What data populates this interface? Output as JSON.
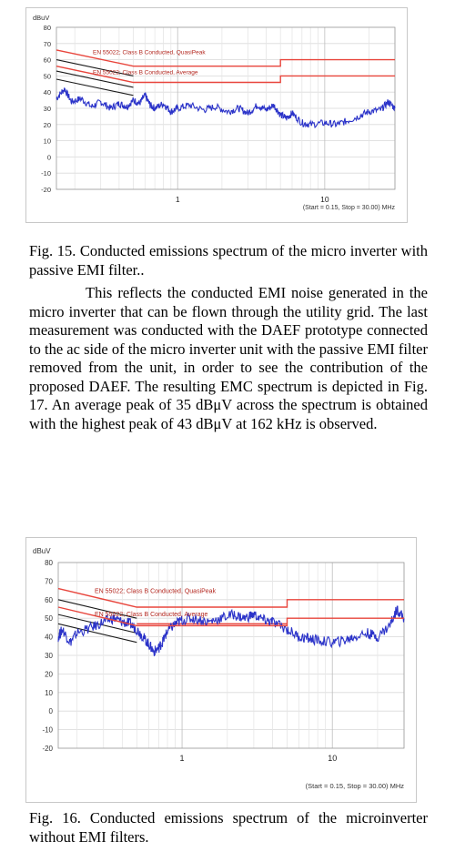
{
  "charts": [
    {
      "type": "line",
      "ylabel": "dBuV",
      "y_ticks": [
        "80",
        "70",
        "60",
        "50",
        "40",
        "30",
        "20",
        "10",
        "0",
        "-10",
        "-20"
      ],
      "ylim": [
        -20,
        80
      ],
      "x_scale": "log",
      "xlim": [
        0.15,
        30
      ],
      "x_ticks": [
        "1",
        "10"
      ],
      "footnote": "(Start = 0.15, Stop = 30.00) MHz",
      "limits": [
        {
          "label": "EN 55022; Class B Conducted, QuasiPeak",
          "color": "#e8453c",
          "points": [
            [
              0.15,
              66
            ],
            [
              0.5,
              56
            ],
            [
              5,
              56
            ],
            [
              5,
              60
            ],
            [
              30,
              60
            ]
          ]
        },
        {
          "label": "EN 55022; Class B Conducted, Average",
          "color": "#e8453c",
          "points": [
            [
              0.15,
              56
            ],
            [
              0.5,
              46
            ],
            [
              5,
              46
            ],
            [
              5,
              50
            ],
            [
              30,
              50
            ]
          ]
        }
      ],
      "black_lines": [
        {
          "points": [
            [
              0.15,
              60
            ],
            [
              0.5,
              50
            ]
          ]
        },
        {
          "points": [
            [
              0.15,
              53
            ],
            [
              0.5,
              43
            ]
          ]
        },
        {
          "points": [
            [
              0.15,
              48
            ],
            [
              0.5,
              38
            ]
          ]
        }
      ],
      "spectrum": {
        "color": "#2b33c9",
        "points": [
          [
            0.15,
            36
          ],
          [
            0.17,
            42
          ],
          [
            0.19,
            34
          ],
          [
            0.22,
            36
          ],
          [
            0.26,
            31
          ],
          [
            0.3,
            34
          ],
          [
            0.35,
            30
          ],
          [
            0.4,
            33
          ],
          [
            0.45,
            31
          ],
          [
            0.5,
            35
          ],
          [
            0.55,
            33
          ],
          [
            0.6,
            38
          ],
          [
            0.65,
            32
          ],
          [
            0.7,
            30
          ],
          [
            0.8,
            33
          ],
          [
            0.9,
            28
          ],
          [
            1.0,
            30
          ],
          [
            1.2,
            32
          ],
          [
            1.5,
            29
          ],
          [
            1.8,
            31
          ],
          [
            2.2,
            28
          ],
          [
            2.6,
            30
          ],
          [
            3.0,
            27
          ],
          [
            3.5,
            32
          ],
          [
            4.0,
            29
          ],
          [
            4.5,
            32
          ],
          [
            5.0,
            26
          ],
          [
            5.5,
            24
          ],
          [
            6,
            27
          ],
          [
            7,
            21
          ],
          [
            8,
            20
          ],
          [
            10,
            21
          ],
          [
            12,
            20
          ],
          [
            14,
            22
          ],
          [
            17,
            25
          ],
          [
            20,
            28
          ],
          [
            24,
            29
          ],
          [
            27,
            34
          ],
          [
            30,
            30
          ]
        ],
        "noise": 2.2
      }
    },
    {
      "type": "line",
      "ylabel": "dBuV",
      "y_ticks": [
        "80",
        "70",
        "60",
        "50",
        "40",
        "30",
        "20",
        "10",
        "0",
        "-10",
        "-20"
      ],
      "ylim": [
        -20,
        80
      ],
      "x_scale": "log",
      "xlim": [
        0.15,
        30
      ],
      "x_ticks": [
        "1",
        "10"
      ],
      "footnote": "(Start = 0.15, Stop = 30.00) MHz",
      "limits": [
        {
          "label": "EN 55022; Class B Conducted, QuasiPeak",
          "color": "#e8453c",
          "points": [
            [
              0.15,
              66
            ],
            [
              0.5,
              56
            ],
            [
              5,
              56
            ],
            [
              5,
              60
            ],
            [
              30,
              60
            ]
          ]
        },
        {
          "label": "EN 55022; Class B Conducted, Average",
          "color": "#e8453c",
          "points": [
            [
              0.15,
              56
            ],
            [
              0.5,
              46
            ],
            [
              5,
              46
            ],
            [
              5,
              50
            ],
            [
              30,
              50
            ]
          ]
        }
      ],
      "black_lines": [
        {
          "points": [
            [
              0.15,
              60
            ],
            [
              0.5,
              50
            ]
          ]
        },
        {
          "points": [
            [
              0.15,
              52
            ],
            [
              0.5,
              42
            ]
          ]
        },
        {
          "points": [
            [
              0.15,
              47
            ],
            [
              0.5,
              37
            ]
          ]
        }
      ],
      "spectrum": {
        "color": "#2b33c9",
        "points": [
          [
            0.15,
            40
          ],
          [
            0.16,
            44
          ],
          [
            0.18,
            37
          ],
          [
            0.2,
            42
          ],
          [
            0.25,
            45
          ],
          [
            0.3,
            48
          ],
          [
            0.35,
            50
          ],
          [
            0.4,
            48
          ],
          [
            0.45,
            47
          ],
          [
            0.5,
            44
          ],
          [
            0.55,
            40
          ],
          [
            0.6,
            36
          ],
          [
            0.65,
            32
          ],
          [
            0.7,
            34
          ],
          [
            0.75,
            38
          ],
          [
            0.8,
            43
          ],
          [
            0.9,
            47
          ],
          [
            1.0,
            49
          ],
          [
            1.2,
            50
          ],
          [
            1.5,
            48
          ],
          [
            1.8,
            50
          ],
          [
            2.2,
            52
          ],
          [
            2.6,
            50
          ],
          [
            3.0,
            52
          ],
          [
            3.5,
            49
          ],
          [
            4.0,
            48
          ],
          [
            5.0,
            44
          ],
          [
            6.0,
            40
          ],
          [
            7,
            39
          ],
          [
            8,
            38
          ],
          [
            10,
            37
          ],
          [
            12,
            38
          ],
          [
            14,
            40
          ],
          [
            17,
            42
          ],
          [
            20,
            40
          ],
          [
            24,
            46
          ],
          [
            27,
            55
          ],
          [
            30,
            50
          ]
        ],
        "noise": 2.8
      },
      "flat_lines": [
        {
          "color": "#e8453c",
          "points": [
            [
              0.5,
              46
            ],
            [
              5,
              46
            ]
          ]
        },
        {
          "color": "#e8453c",
          "points": [
            [
              0.5,
              47
            ],
            [
              5,
              47
            ]
          ]
        }
      ]
    }
  ],
  "fig15_caption": "Fig. 15. Conducted emissions spectrum of the micro inverter with passive EMI filter..",
  "paragraph": [
    "This reflects the conducted EMI noise generated in the micro inverter that can be flown through the utility grid. The last measurement was conducted with the DAEF prototype connected to the ac side of the micro inverter unit with the passive EMI filter removed from the unit, in order to see the contribution of the proposed DAEF. The resulting EMC spectrum is depicted in Fig. 17. An average peak of 35 dBμV across the spectrum is obtained with the highest peak of 43 dBμV at 162 kHz is observed."
  ],
  "fig16_caption": "Fig. 16. Conducted emissions spectrum of the microinverter without EMI filters."
}
